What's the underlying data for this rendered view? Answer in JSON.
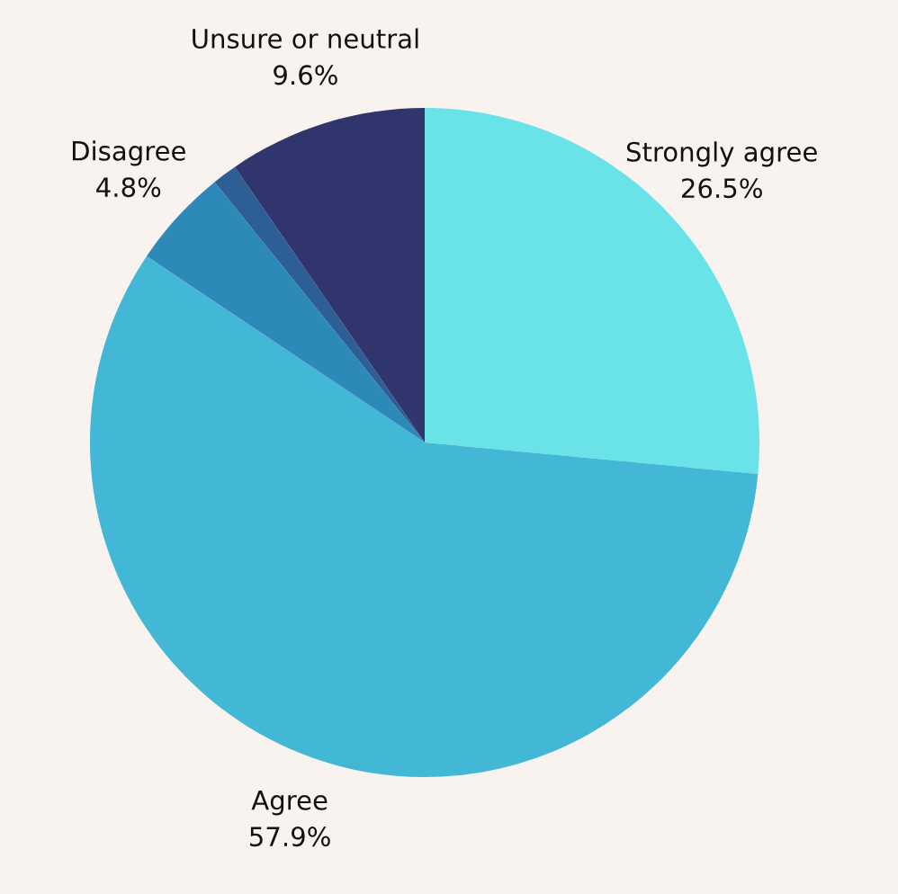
{
  "chart_data": {
    "type": "pie",
    "categories": [
      "Strongly agree",
      "Agree",
      "Disagree",
      null,
      "Unsure or neutral"
    ],
    "values": [
      26.5,
      57.9,
      4.8,
      1.2,
      9.6
    ],
    "colors": [
      "#6ae3e8",
      "#42b7d6",
      "#2d8ab8",
      "#2d5e96",
      "#31356d"
    ],
    "value_labels": [
      "26.5%",
      "57.9%",
      "4.8%",
      null,
      "9.6%"
    ]
  }
}
